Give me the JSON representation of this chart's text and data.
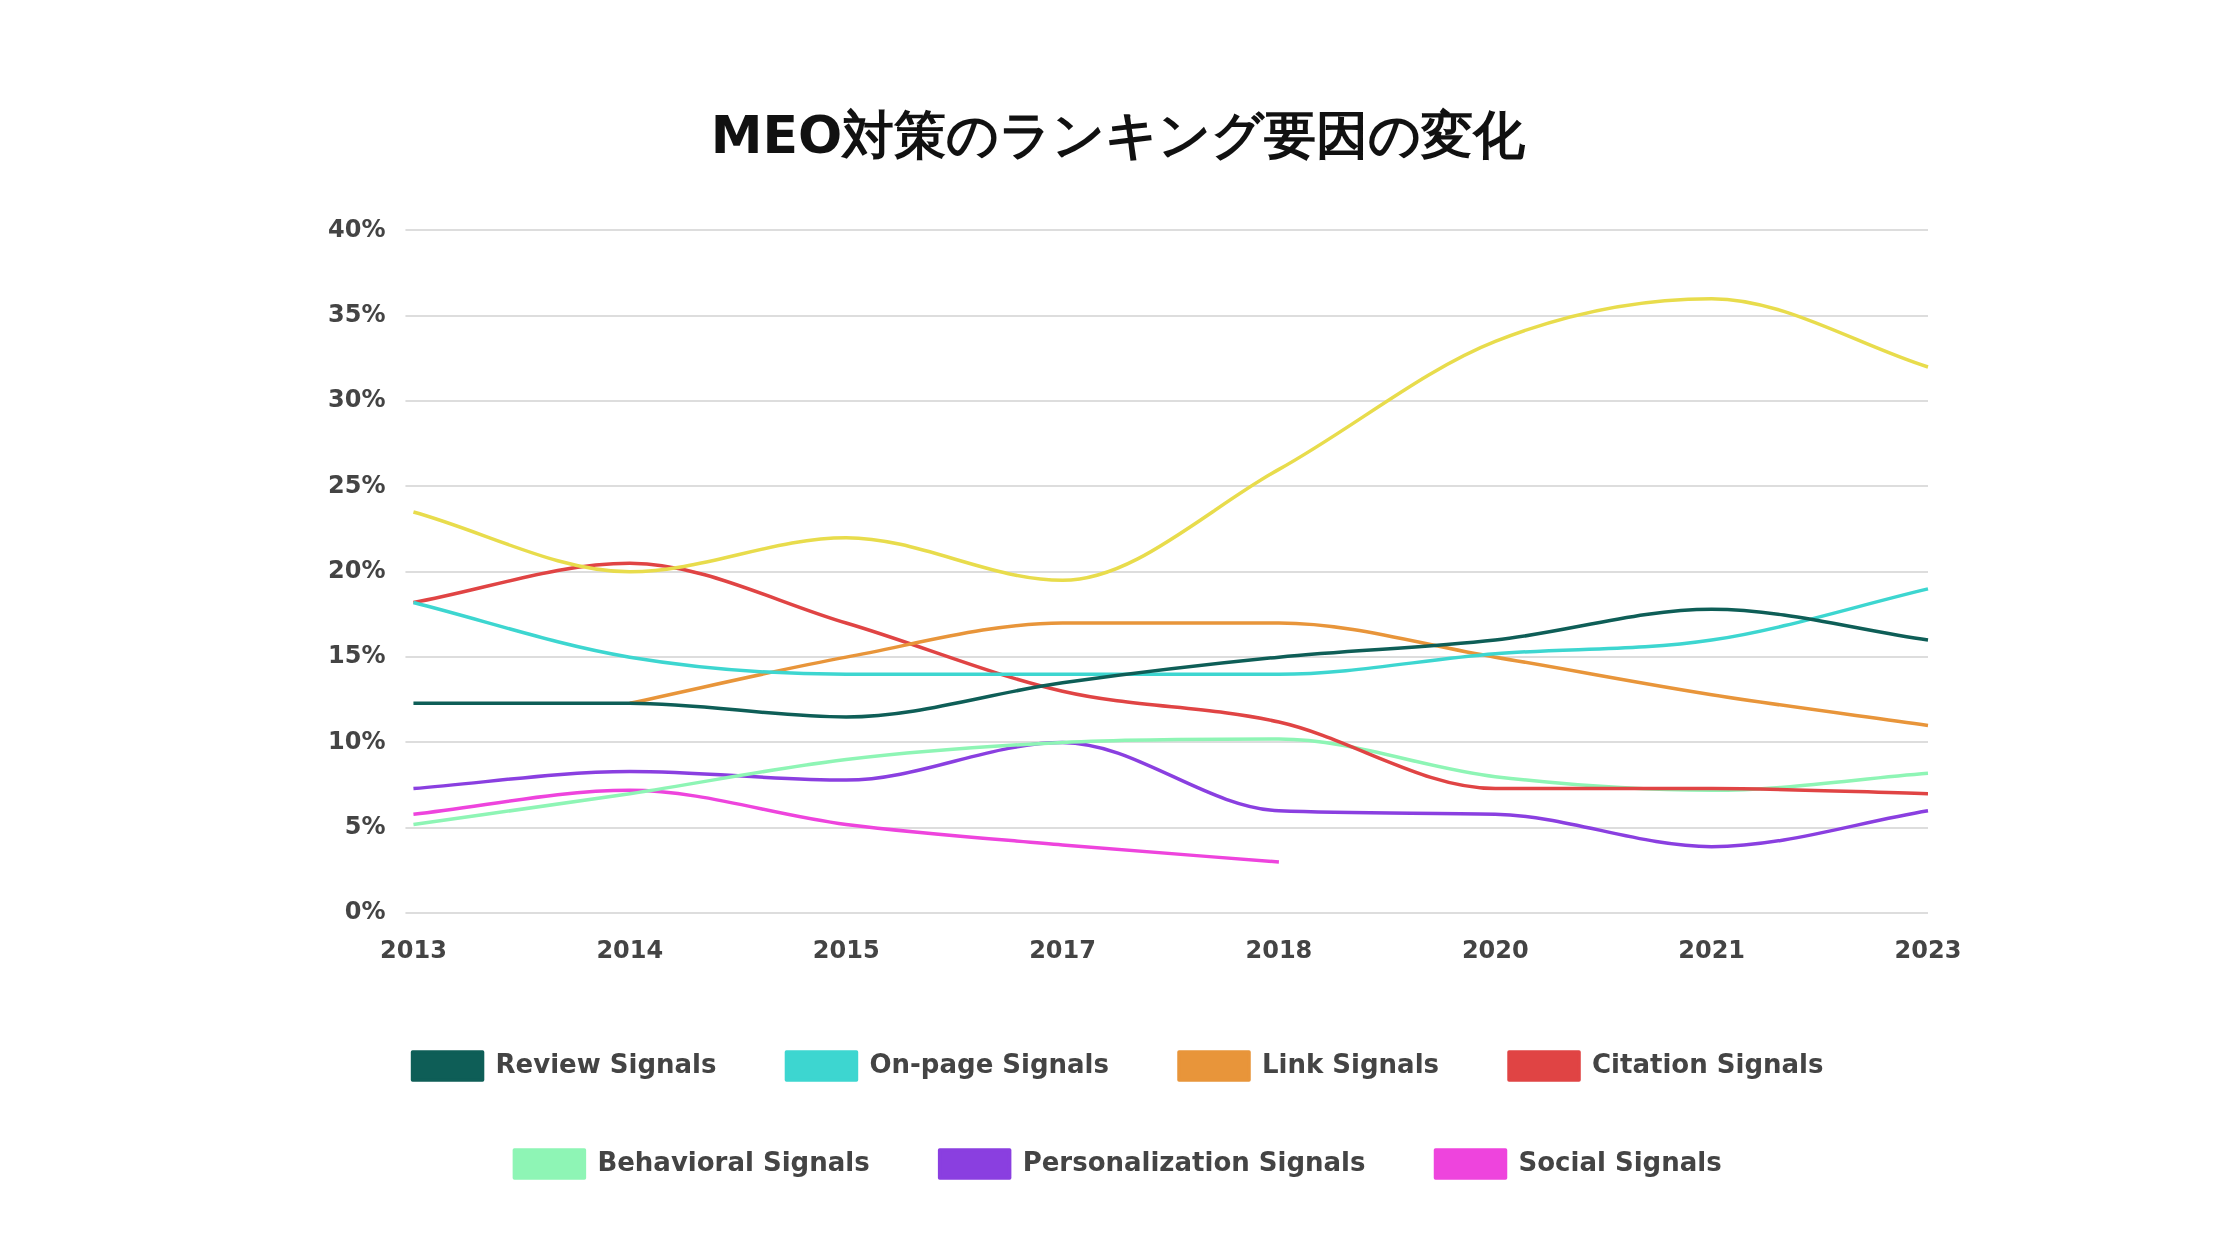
{
  "chart_data": {
    "type": "line",
    "title": "MEO対策のランキング要因の変化",
    "categories": [
      "2013",
      "2014",
      "2015",
      "2017",
      "2018",
      "2020",
      "2021",
      "2023"
    ],
    "series": [
      {
        "color": "#e8dc4c",
        "values": [
          23.5,
          20,
          22,
          19.5,
          26,
          33.5,
          36,
          32
        ]
      },
      {
        "name": "Review Signals",
        "color": "#0e5e57",
        "values": [
          12.3,
          12.3,
          11.5,
          13.5,
          15,
          16,
          17.8,
          16
        ]
      },
      {
        "name": "On-page Signals",
        "color": "#3dd6d0",
        "values": [
          18.2,
          15,
          14,
          14,
          14,
          15.2,
          16,
          19
        ]
      },
      {
        "name": "Link Signals",
        "color": "#e8953a",
        "values": [
          null,
          12.3,
          15,
          17,
          17,
          15,
          12.8,
          11
        ]
      },
      {
        "name": "Citation Signals",
        "color": "#e04444",
        "values": [
          18.2,
          20.5,
          17,
          13,
          11.2,
          7.3,
          7.3,
          7
        ]
      },
      {
        "name": "Behavioral Signals",
        "color": "#8ef5b5",
        "values": [
          5.2,
          7,
          9,
          10,
          10.2,
          8,
          7.2,
          8.2
        ]
      },
      {
        "name": "Personalization Signals",
        "color": "#8a3fe0",
        "values": [
          7.3,
          8.3,
          7.8,
          10,
          6,
          5.8,
          3.9,
          6
        ]
      },
      {
        "name": "Social Signals",
        "color": "#ee44dd",
        "values": [
          5.8,
          7.2,
          5.2,
          4,
          3,
          null,
          null,
          null
        ]
      }
    ],
    "ylim": [
      0,
      40
    ],
    "yticks": [
      {
        "value": 0,
        "label": "0%"
      },
      {
        "value": 5,
        "label": "5%"
      },
      {
        "value": 10,
        "label": "10%"
      },
      {
        "value": 15,
        "label": "15%"
      },
      {
        "value": 20,
        "label": "20%"
      },
      {
        "value": 25,
        "label": "25%"
      },
      {
        "value": 30,
        "label": "30%"
      },
      {
        "value": 35,
        "label": "35%"
      },
      {
        "value": 40,
        "label": "40%"
      }
    ],
    "grid": "y",
    "legend": "bottom",
    "marker": "none",
    "line_style": "solid"
  }
}
